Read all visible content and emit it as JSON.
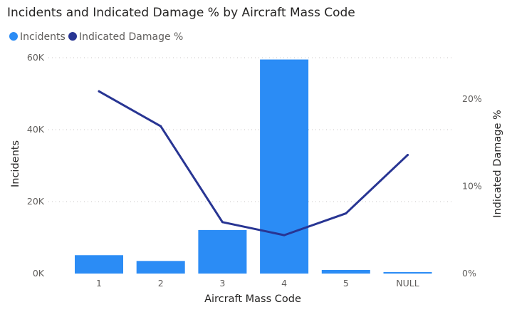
{
  "chart_data": {
    "type": "bar+line",
    "title": "Incidents and Indicated Damage % by Aircraft Mass Code",
    "xlabel": "Aircraft Mass Code",
    "ylabel": "Incidents",
    "y2label": "Indicated Damage %",
    "categories": [
      "1",
      "2",
      "3",
      "4",
      "5",
      "NULL"
    ],
    "ylim": [
      0,
      60000
    ],
    "y2lim": [
      0,
      0.25
    ],
    "yticks": [
      {
        "value": 0,
        "label": "0K"
      },
      {
        "value": 20000,
        "label": "20K"
      },
      {
        "value": 40000,
        "label": "40K"
      },
      {
        "value": 60000,
        "label": "60K"
      }
    ],
    "y2ticks": [
      {
        "value": 0,
        "label": "0%"
      },
      {
        "value": 0.1,
        "label": "10%"
      },
      {
        "value": 0.2,
        "label": "20%"
      }
    ],
    "grid": true,
    "legend_position": "top-left",
    "series": [
      {
        "name": "Incidents",
        "type": "bar",
        "axis": "left",
        "color": "#2b8cf5",
        "values": [
          5100,
          3500,
          12100,
          59500,
          1000,
          400
        ]
      },
      {
        "name": "Indicated Damage %",
        "type": "line",
        "axis": "right",
        "color": "#283593",
        "values": [
          0.209,
          0.169,
          0.059,
          0.044,
          0.069,
          0.136
        ]
      }
    ]
  }
}
